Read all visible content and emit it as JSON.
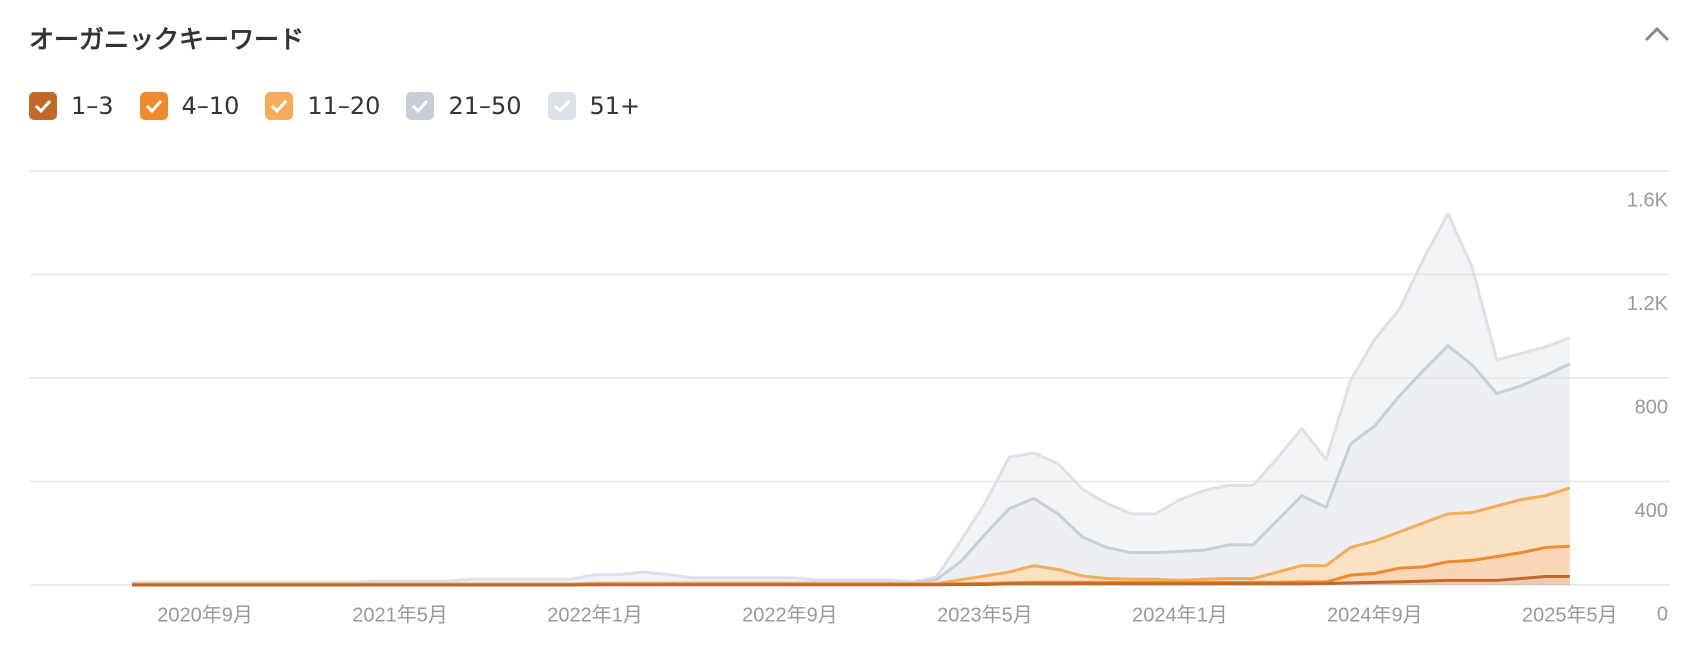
{
  "chart_data": {
    "type": "stacked-area",
    "title": "オーガニックキーワード",
    "categories": [
      null,
      null,
      null,
      "2020年9月",
      null,
      null,
      null,
      null,
      null,
      null,
      null,
      "2021年5月",
      null,
      null,
      null,
      null,
      null,
      null,
      null,
      "2022年1月",
      null,
      null,
      null,
      null,
      null,
      null,
      null,
      "2022年9月",
      null,
      null,
      null,
      null,
      null,
      null,
      null,
      "2023年5月",
      null,
      null,
      null,
      null,
      null,
      null,
      null,
      "2024年1月",
      null,
      null,
      null,
      null,
      null,
      null,
      null,
      "2024年9月",
      null,
      null,
      null,
      null,
      null,
      null,
      null,
      "2025年5月"
    ],
    "series": [
      {
        "name": "1–3",
        "color": "#c0692a",
        "values": [
          0,
          0,
          0,
          0,
          0,
          0,
          0,
          0,
          0,
          0,
          0,
          0,
          0,
          0,
          0,
          0,
          0,
          0,
          0,
          1,
          1,
          1,
          1,
          1,
          1,
          1,
          1,
          1,
          1,
          1,
          1,
          1,
          1,
          1,
          2,
          2,
          5,
          5,
          5,
          5,
          5,
          5,
          5,
          5,
          5,
          5,
          5,
          5,
          5,
          6,
          8,
          10,
          12,
          15,
          18,
          18,
          18,
          25,
          33,
          33
        ]
      },
      {
        "name": "4–10",
        "color": "#f08a2e",
        "values": [
          1,
          1,
          1,
          1,
          1,
          1,
          1,
          1,
          1,
          1,
          1,
          1,
          1,
          1,
          1,
          1,
          1,
          1,
          1,
          2,
          2,
          2,
          2,
          2,
          2,
          2,
          2,
          2,
          2,
          2,
          2,
          2,
          2,
          2,
          3,
          4,
          3,
          5,
          5,
          5,
          5,
          5,
          5,
          5,
          5,
          5,
          5,
          5,
          7,
          6,
          30,
          35,
          53,
          55,
          72,
          77,
          92,
          100,
          112,
          117
        ]
      },
      {
        "name": "11–20",
        "color": "#f5ac5a",
        "values": [
          2,
          2,
          2,
          2,
          2,
          2,
          2,
          2,
          2,
          2,
          2,
          2,
          2,
          2,
          2,
          2,
          2,
          2,
          2,
          2,
          2,
          2,
          2,
          2,
          2,
          2,
          2,
          2,
          2,
          2,
          2,
          2,
          2,
          2,
          15,
          29,
          42,
          65,
          50,
          25,
          15,
          12,
          12,
          8,
          12,
          15,
          15,
          40,
          63,
          63,
          107,
          125,
          140,
          170,
          185,
          185,
          195,
          205,
          200,
          225
        ]
      },
      {
        "name": "21–50",
        "color": "#c8cdd6",
        "values": [
          2,
          2,
          2,
          2,
          2,
          2,
          2,
          2,
          2,
          2,
          2,
          2,
          2,
          2,
          2,
          2,
          2,
          2,
          2,
          3,
          3,
          3,
          3,
          3,
          3,
          3,
          3,
          3,
          3,
          3,
          3,
          3,
          3,
          15,
          70,
          160,
          245,
          260,
          215,
          150,
          120,
          103,
          103,
          112,
          113,
          130,
          130,
          200,
          270,
          225,
          400,
          445,
          525,
          590,
          650,
          570,
          435,
          440,
          465,
          480
        ]
      },
      {
        "name": "51+",
        "color": "#dde0e6",
        "values": [
          5,
          5,
          5,
          5,
          5,
          5,
          5,
          5,
          5,
          5,
          10,
          10,
          10,
          10,
          17,
          17,
          17,
          17,
          17,
          32,
          32,
          42,
          32,
          20,
          20,
          20,
          20,
          20,
          12,
          12,
          12,
          12,
          4,
          10,
          80,
          120,
          200,
          175,
          195,
          185,
          170,
          150,
          150,
          200,
          230,
          230,
          230,
          240,
          260,
          185,
          245,
          335,
          335,
          430,
          510,
          375,
          130,
          125,
          110,
          100
        ]
      }
    ],
    "ylim": [
      0,
      1600
    ],
    "yticks": [
      0,
      400,
      800,
      {
        "value": 1200,
        "label": "1.2K"
      },
      {
        "value": 1600,
        "label": "1.6K"
      }
    ],
    "grid": true
  }
}
